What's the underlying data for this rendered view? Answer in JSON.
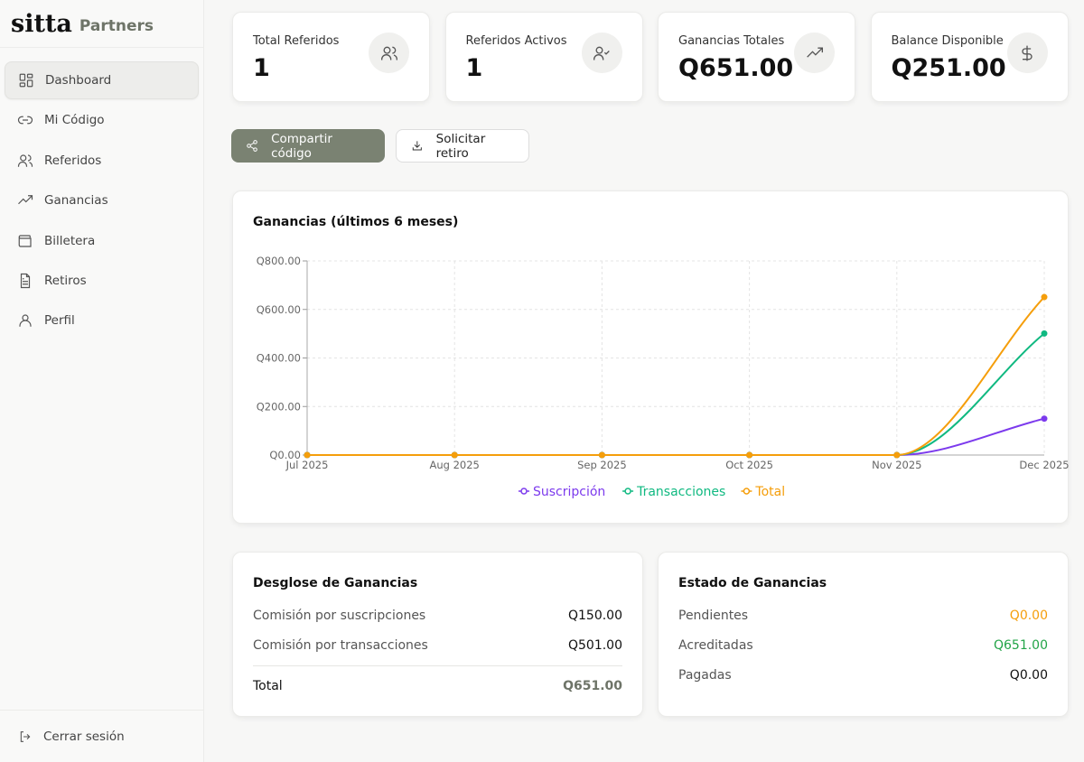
{
  "brand": {
    "name": "sitta",
    "sub": "Partners"
  },
  "sidebar": {
    "items": [
      {
        "label": "Dashboard",
        "icon": "dashboard-icon",
        "active": true
      },
      {
        "label": "Mi Código",
        "icon": "link-icon"
      },
      {
        "label": "Referidos",
        "icon": "users-icon"
      },
      {
        "label": "Ganancias",
        "icon": "trending-up-icon"
      },
      {
        "label": "Billetera",
        "icon": "wallet-icon"
      },
      {
        "label": "Retiros",
        "icon": "document-icon"
      },
      {
        "label": "Perfil",
        "icon": "user-icon"
      }
    ],
    "logout": "Cerrar sesión"
  },
  "stats": [
    {
      "label": "Total Referidos",
      "value": "1",
      "icon": "users-icon"
    },
    {
      "label": "Referidos Activos",
      "value": "1",
      "icon": "user-check-icon"
    },
    {
      "label": "Ganancias Totales",
      "value": "Q651.00",
      "icon": "trending-up-icon"
    },
    {
      "label": "Balance Disponible",
      "value": "Q251.00",
      "icon": "dollar-icon"
    }
  ],
  "actions": {
    "share": "Compartir código",
    "withdraw": "Solicitar retiro"
  },
  "chart_data": {
    "type": "line",
    "title": "Ganancias (últimos 6 meses)",
    "categories": [
      "Jul 2025",
      "Aug 2025",
      "Sep 2025",
      "Oct 2025",
      "Nov 2025",
      "Dec 2025"
    ],
    "yticks": [
      "Q0.00",
      "Q200.00",
      "Q400.00",
      "Q600.00",
      "Q800.00"
    ],
    "ylim": [
      0,
      800
    ],
    "grid": true,
    "legend": "bottom",
    "series": [
      {
        "name": "Suscripción",
        "color": "#7c3aed",
        "values": [
          0,
          0,
          0,
          0,
          0,
          150
        ]
      },
      {
        "name": "Transacciones",
        "color": "#10b981",
        "values": [
          0,
          0,
          0,
          0,
          0,
          501
        ]
      },
      {
        "name": "Total",
        "color": "#f59e0b",
        "values": [
          0,
          0,
          0,
          0,
          0,
          651
        ]
      }
    ]
  },
  "breakdown": {
    "title": "Desglose de Ganancias",
    "rows": [
      {
        "label": "Comisión por suscripciones",
        "value": "Q150.00"
      },
      {
        "label": "Comisión por transacciones",
        "value": "Q501.00"
      }
    ],
    "total_label": "Total",
    "total_value": "Q651.00"
  },
  "status": {
    "title": "Estado de Ganancias",
    "rows": [
      {
        "label": "Pendientes",
        "value": "Q0.00",
        "color": "#f59e0b"
      },
      {
        "label": "Acreditadas",
        "value": "Q651.00",
        "color": "#22a447"
      },
      {
        "label": "Pagadas",
        "value": "Q0.00",
        "color": "#111111"
      }
    ]
  }
}
